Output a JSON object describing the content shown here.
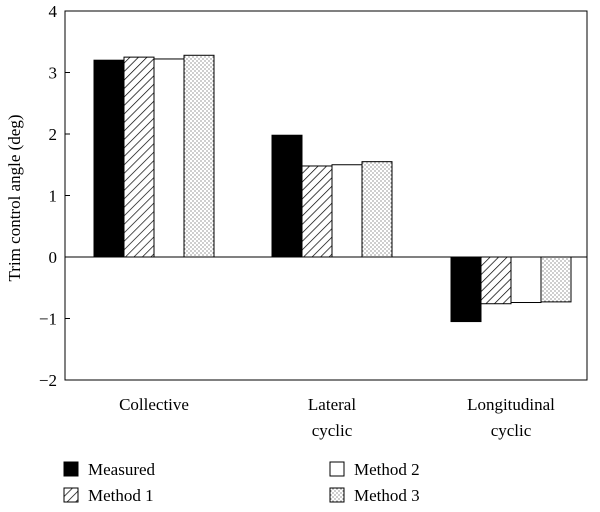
{
  "chart_data": {
    "type": "bar",
    "title": "",
    "xlabel": "",
    "ylabel": "Trim control angle (deg)",
    "ylim": [
      -2,
      4
    ],
    "yticks": [
      4,
      3,
      2,
      1,
      0,
      -1,
      -2
    ],
    "ytick_labels": [
      "4",
      "3",
      "2",
      "1",
      "0",
      "−1",
      "−2"
    ],
    "categories": [
      [
        "Collective"
      ],
      [
        "Lateral",
        "cyclic"
      ],
      [
        "Longitudinal",
        "cyclic"
      ]
    ],
    "series": [
      {
        "name": "Measured",
        "pattern": "solid-black",
        "values": [
          3.2,
          1.98,
          -1.05
        ]
      },
      {
        "name": "Method 1",
        "pattern": "diagonal-hatch",
        "values": [
          3.25,
          1.48,
          -0.76
        ]
      },
      {
        "name": "Method 2",
        "pattern": "white",
        "values": [
          3.22,
          1.5,
          -0.74
        ]
      },
      {
        "name": "Method 3",
        "pattern": "dotted",
        "values": [
          3.28,
          1.55,
          -0.73
        ]
      }
    ],
    "legend": "bottom",
    "grid": false,
    "colors": {
      "bar_stroke": "#000000",
      "solid": "#000000",
      "white": "#ffffff",
      "dot": "#555555"
    }
  }
}
